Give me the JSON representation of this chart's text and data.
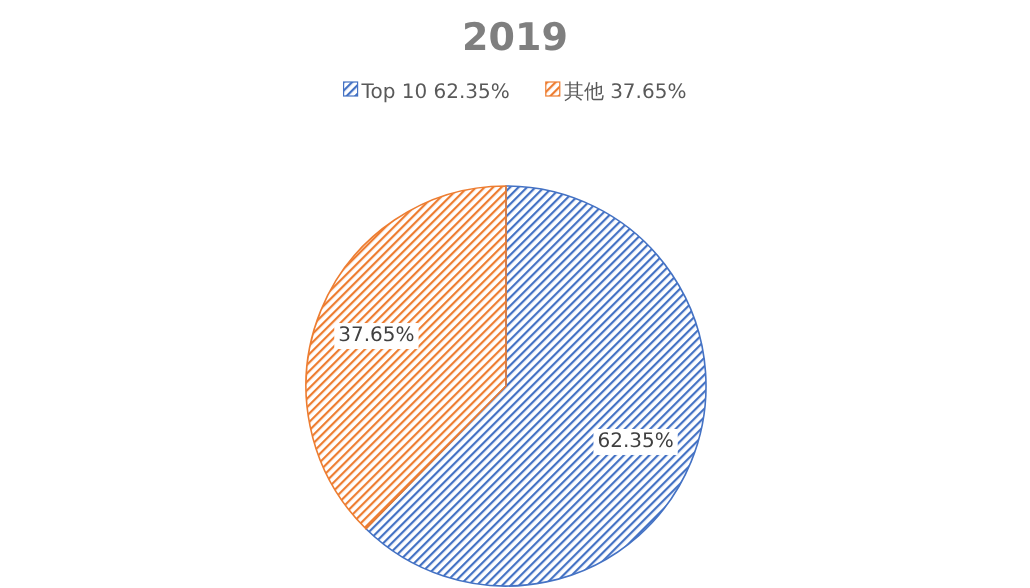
{
  "chart_data": {
    "type": "pie",
    "title": "2019",
    "categories": [
      "Top 10 62.35%",
      "其他 37.65%"
    ],
    "values": [
      62.35,
      37.65
    ],
    "value_labels": [
      "62.35%",
      "37.65%"
    ],
    "colors": [
      "#4472c4",
      "#ed7d31"
    ],
    "legend": "top"
  }
}
